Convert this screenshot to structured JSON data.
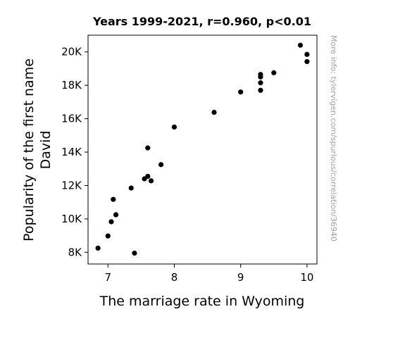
{
  "chart_data": {
    "type": "scatter",
    "title": "Years 1999-2021, r=0.960, p<0.01",
    "xlabel": "The marriage rate in Wyoming",
    "ylabel": [
      "Popularity of the first name",
      "David"
    ],
    "xlim": [
      6.7,
      10.15
    ],
    "ylim": [
      7300,
      21000
    ],
    "xticks": [
      7,
      8,
      9,
      10
    ],
    "xtick_labels": [
      "7",
      "8",
      "9",
      "10"
    ],
    "yticks": [
      8000,
      10000,
      12000,
      14000,
      16000,
      18000,
      20000
    ],
    "ytick_labels": [
      "8K",
      "10K",
      "12K",
      "14K",
      "16K",
      "18K",
      "20K"
    ],
    "grid": false,
    "legend": "none",
    "marker_color": "#000000",
    "points": [
      {
        "x": 6.85,
        "y": 8250
      },
      {
        "x": 7.0,
        "y": 8980
      },
      {
        "x": 7.05,
        "y": 9830
      },
      {
        "x": 7.08,
        "y": 11170
      },
      {
        "x": 7.12,
        "y": 10250
      },
      {
        "x": 7.35,
        "y": 11850
      },
      {
        "x": 7.4,
        "y": 7950
      },
      {
        "x": 7.55,
        "y": 12400
      },
      {
        "x": 7.6,
        "y": 12550
      },
      {
        "x": 7.6,
        "y": 14250
      },
      {
        "x": 7.65,
        "y": 12280
      },
      {
        "x": 7.8,
        "y": 13250
      },
      {
        "x": 8.0,
        "y": 15500
      },
      {
        "x": 8.6,
        "y": 16380
      },
      {
        "x": 9.0,
        "y": 17600
      },
      {
        "x": 9.3,
        "y": 17700
      },
      {
        "x": 9.3,
        "y": 18150
      },
      {
        "x": 9.3,
        "y": 18500
      },
      {
        "x": 9.3,
        "y": 18650
      },
      {
        "x": 9.5,
        "y": 18750
      },
      {
        "x": 9.9,
        "y": 20400
      },
      {
        "x": 10.0,
        "y": 19850
      },
      {
        "x": 10.0,
        "y": 19420
      }
    ],
    "watermark": "More info: tylervigen.com/spurious/correlation/36940"
  }
}
